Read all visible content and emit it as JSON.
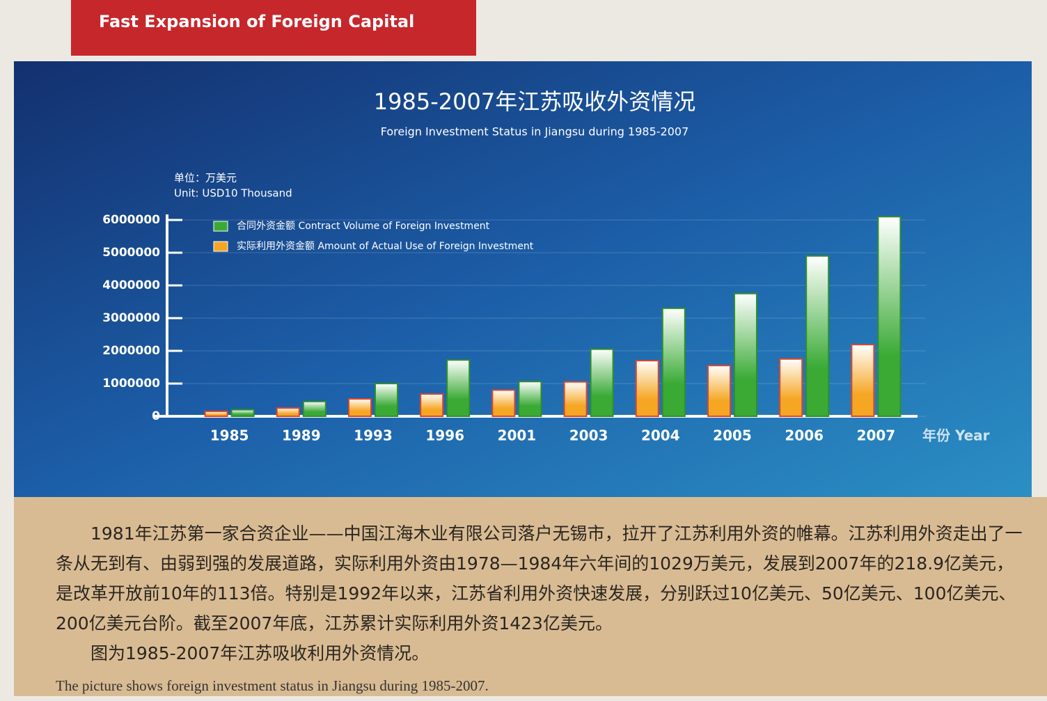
{
  "header": {
    "title": "Fast Expansion of Foreign Capital"
  },
  "chart_data": {
    "type": "bar",
    "title": "1985-2007年江苏吸收外资情况",
    "subtitle": "Foreign Investment Status in Jiangsu during 1985-2007",
    "unit": [
      "单位：万美元",
      "Unit: USD10 Thousand"
    ],
    "x_label": "年份 Year",
    "categories": [
      "1985",
      "1989",
      "1993",
      "1996",
      "2001",
      "2003",
      "2004",
      "2005",
      "2006",
      "2007"
    ],
    "series": [
      {
        "name": "实际利用外资金额 Amount of Actual Use of Foreign Investment",
        "color": "#f5a623",
        "values": [
          150000,
          250000,
          530000,
          680000,
          800000,
          1050000,
          1700000,
          1550000,
          1750000,
          2190000
        ]
      },
      {
        "name": "合同外资金额 Contract Volume of Foreign Investment",
        "color": "#3aaa35",
        "values": [
          200000,
          450000,
          1000000,
          1720000,
          1060000,
          2050000,
          3300000,
          3750000,
          4900000,
          6100000
        ]
      }
    ],
    "ylim": [
      0,
      6300000
    ],
    "yticks": [
      0,
      1000000,
      2000000,
      3000000,
      4000000,
      5000000,
      6000000
    ],
    "grid": true
  },
  "description": {
    "paragraphs": [
      "1981年江苏第一家合资企业——中国江海木业有限公司落户无锡市，拉开了江苏利用外资的帷幕。江苏利用外资走出了一条从无到有、由弱到强的发展道路，实际利用外资由1978—1984年六年间的1029万美元，发展到2007年的218.9亿美元，是改革开放前10年的113倍。特别是1992年以来，江苏省利用外资快速发展，分别跃过10亿美元、50亿美元、100亿美元、200亿美元台阶。截至2007年底，江苏累计实际利用外资1423亿美元。",
      "图为1985-2007年江苏吸收利用外资情况。"
    ],
    "caption": "The picture shows foreign investment status in Jiangsu during 1985-2007."
  }
}
